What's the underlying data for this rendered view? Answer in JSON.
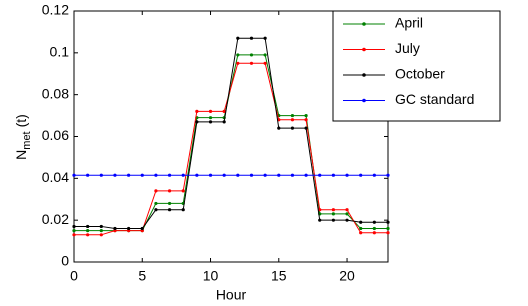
{
  "chart_data": {
    "type": "line",
    "xlabel": "Hour",
    "ylabel": {
      "main": "N",
      "sub": "met",
      "suffix": "(t)"
    },
    "x": [
      0,
      1,
      2,
      3,
      4,
      5,
      6,
      7,
      8,
      9,
      10,
      11,
      12,
      13,
      14,
      15,
      16,
      17,
      18,
      19,
      20,
      21,
      22,
      23
    ],
    "series": [
      {
        "name": "April",
        "color": "#008000",
        "values": [
          0.015,
          0.015,
          0.015,
          0.015,
          0.015,
          0.015,
          0.028,
          0.028,
          0.028,
          0.069,
          0.069,
          0.069,
          0.099,
          0.099,
          0.099,
          0.07,
          0.07,
          0.07,
          0.023,
          0.023,
          0.023,
          0.016,
          0.016,
          0.016
        ]
      },
      {
        "name": "July",
        "color": "#ff0000",
        "values": [
          0.013,
          0.013,
          0.013,
          0.015,
          0.015,
          0.015,
          0.034,
          0.034,
          0.034,
          0.072,
          0.072,
          0.072,
          0.095,
          0.095,
          0.095,
          0.068,
          0.068,
          0.068,
          0.025,
          0.025,
          0.025,
          0.014,
          0.014,
          0.014
        ]
      },
      {
        "name": "October",
        "color": "#000000",
        "values": [
          0.017,
          0.017,
          0.017,
          0.016,
          0.016,
          0.016,
          0.025,
          0.025,
          0.025,
          0.067,
          0.067,
          0.067,
          0.107,
          0.107,
          0.107,
          0.064,
          0.064,
          0.064,
          0.02,
          0.02,
          0.02,
          0.019,
          0.019,
          0.019
        ]
      },
      {
        "name": "GC standard",
        "color": "#0000ff",
        "values": [
          0.0415,
          0.0415,
          0.0415,
          0.0415,
          0.0415,
          0.0415,
          0.0415,
          0.0415,
          0.0415,
          0.0415,
          0.0415,
          0.0415,
          0.0415,
          0.0415,
          0.0415,
          0.0415,
          0.0415,
          0.0415,
          0.0415,
          0.0415,
          0.0415,
          0.0415,
          0.0415,
          0.0415
        ]
      }
    ],
    "xlim": [
      0,
      23
    ],
    "xticks": [
      0,
      5,
      10,
      15,
      20
    ],
    "ylim": [
      0,
      0.12
    ],
    "yticks": [
      0,
      0.02,
      0.04,
      0.06,
      0.08,
      0.1,
      0.12
    ],
    "legend": "top-right",
    "grid": false
  }
}
